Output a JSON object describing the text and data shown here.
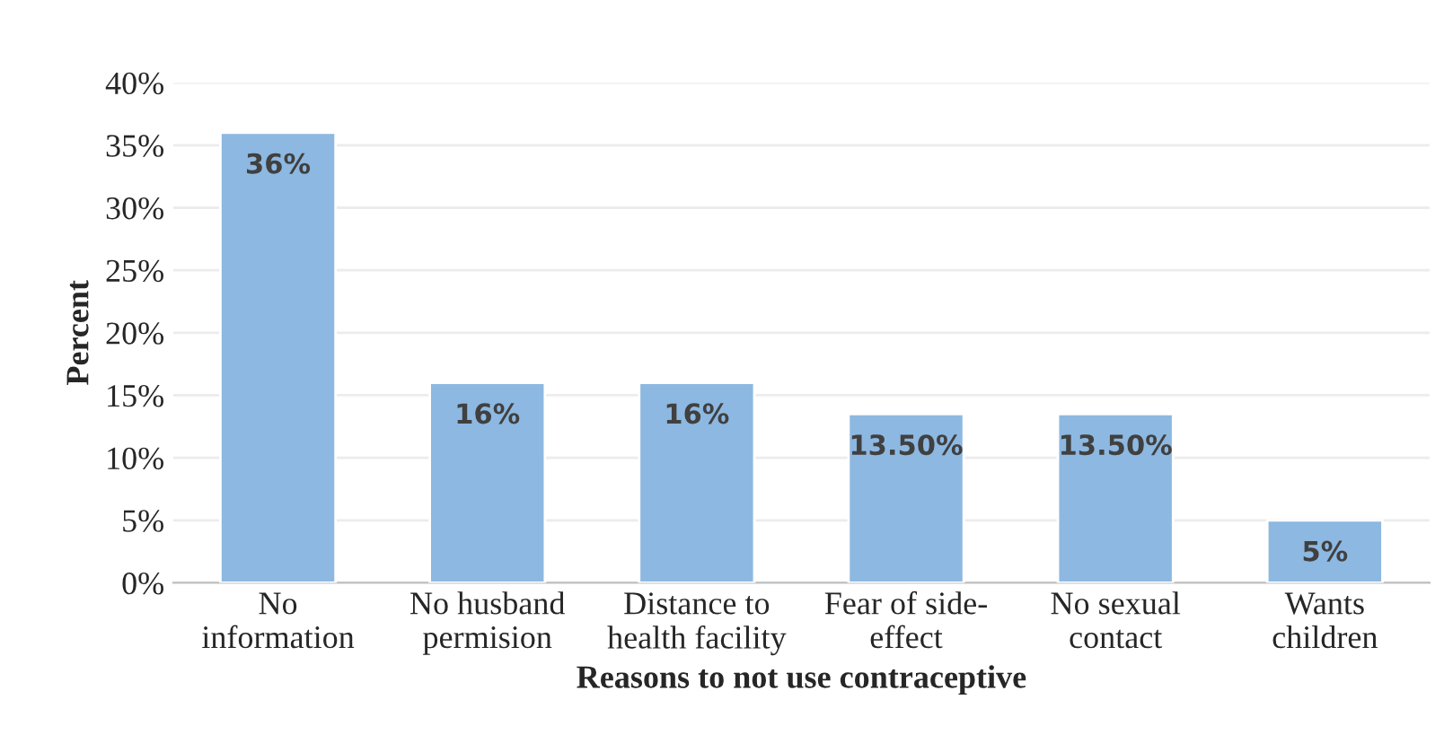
{
  "chart_data": {
    "type": "bar",
    "xlabel": "Reasons to not use contraceptive",
    "ylabel": "Percent",
    "categories": [
      "No\ninformation",
      "No husband\npermision",
      "Distance to\nhealth facility",
      "Fear of side-\neffect",
      "No sexual\ncontact",
      "Wants\nchildren"
    ],
    "values": [
      36,
      16,
      16,
      13.5,
      13.5,
      5
    ],
    "value_labels": [
      "36%",
      "16%",
      "16%",
      "13.50%",
      "13.50%",
      "5%"
    ],
    "color": "#8db8e1",
    "ylim": [
      0,
      40
    ],
    "yticks": [
      {
        "value": 0,
        "label": "0%"
      },
      {
        "value": 5,
        "label": "5%"
      },
      {
        "value": 10,
        "label": "10%"
      },
      {
        "value": 15,
        "label": "15%"
      },
      {
        "value": 20,
        "label": "20%"
      },
      {
        "value": 25,
        "label": "25%"
      },
      {
        "value": 30,
        "label": "30%"
      },
      {
        "value": 35,
        "label": "35%"
      },
      {
        "value": 40,
        "label": "40%"
      }
    ],
    "grid": "y"
  }
}
